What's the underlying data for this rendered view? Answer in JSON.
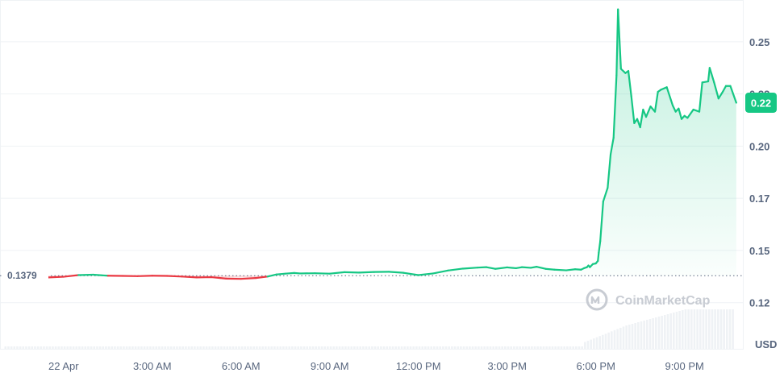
{
  "chart_data": {
    "type": "area",
    "x_ticks": [
      "22 Apr",
      "3:00 AM",
      "6:00 AM",
      "9:00 AM",
      "12:00 PM",
      "3:00 PM",
      "6:00 PM",
      "9:00 PM"
    ],
    "y_ticks": [
      "0.25",
      "0.22",
      "0.20",
      "0.17",
      "0.15",
      "0.12"
    ],
    "y_tick_values": [
      0.25,
      0.225,
      0.2,
      0.175,
      0.15,
      0.125
    ],
    "ylim": [
      0.1025,
      0.27
    ],
    "xlim_hours": [
      -2.15,
      23.0
    ],
    "unit": "USD",
    "reference_price": "0.1379",
    "reference_value": 0.1379,
    "current_price": "0.22",
    "current_value": 0.2208,
    "watermark": "CoinMarketCap",
    "colors": {
      "up": "#16c784",
      "down": "#ea3943",
      "grid": "#eff2f5",
      "text": "#58667e"
    },
    "series": [
      {
        "x": [
          -2.0,
          -1.5,
          -1.0,
          -0.5,
          0.0,
          0.5,
          1.0,
          1.5,
          2.0,
          2.5,
          3.0,
          3.5,
          4.0,
          4.5,
          5.0,
          5.3,
          5.5,
          6.0,
          6.5,
          6.9,
          7.2,
          7.5,
          7.8,
          8.0,
          8.5,
          9.0,
          9.5,
          10.0,
          10.5,
          11.0,
          11.5,
          12.0,
          12.5,
          13.0,
          13.5,
          14.0,
          14.3,
          14.6,
          15.0,
          15.3,
          15.5,
          15.8,
          16.0,
          16.3,
          16.6,
          17.0,
          17.3,
          17.5,
          17.6,
          17.7,
          17.75,
          17.8,
          17.9,
          18.0,
          18.07,
          18.1,
          18.15,
          18.25,
          18.4,
          18.5,
          18.6,
          18.7,
          18.75,
          18.85,
          19.0,
          19.1,
          19.2,
          19.3,
          19.4,
          19.5,
          19.6,
          19.7,
          19.85,
          20.0,
          20.1,
          20.2,
          20.4,
          20.6,
          20.7,
          20.8,
          20.9,
          21.0,
          21.1,
          21.3,
          21.5,
          21.6,
          21.8,
          21.85,
          22.0,
          22.15,
          22.3,
          22.4,
          22.55,
          22.75
        ],
        "y": [
          0.1368,
          0.1372,
          0.1376,
          0.1371,
          0.1374,
          0.1382,
          0.1384,
          0.1379,
          0.1378,
          0.1377,
          0.1379,
          0.1378,
          0.1375,
          0.1371,
          0.1372,
          0.1368,
          0.1365,
          0.1364,
          0.1368,
          0.1375,
          0.1385,
          0.1389,
          0.1392,
          0.139,
          0.1391,
          0.1389,
          0.1396,
          0.1394,
          0.1397,
          0.1398,
          0.1393,
          0.1382,
          0.139,
          0.1404,
          0.1413,
          0.1418,
          0.142,
          0.1412,
          0.1419,
          0.1415,
          0.142,
          0.1417,
          0.1422,
          0.1412,
          0.1408,
          0.1405,
          0.141,
          0.1408,
          0.1415,
          0.142,
          0.1428,
          0.142,
          0.1435,
          0.1438,
          0.145,
          0.149,
          0.1545,
          0.1735,
          0.18,
          0.196,
          0.204,
          0.234,
          0.2655,
          0.237,
          0.235,
          0.236,
          0.224,
          0.211,
          0.213,
          0.209,
          0.2175,
          0.214,
          0.219,
          0.2165,
          0.226,
          0.227,
          0.2282,
          0.2195,
          0.2165,
          0.218,
          0.213,
          0.2145,
          0.2135,
          0.2175,
          0.2165,
          0.2305,
          0.231,
          0.2375,
          0.2305,
          0.2228,
          0.2262,
          0.2288,
          0.2288,
          0.2208
        ]
      }
    ]
  }
}
